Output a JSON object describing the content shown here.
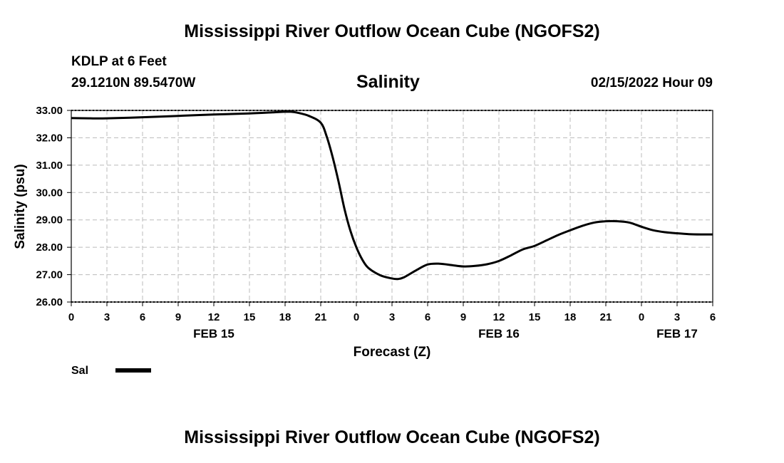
{
  "page_title": "Mississippi River Outflow Ocean Cube (NGOFS2)",
  "footer_title": "Mississippi River Outflow Ocean Cube (NGOFS2)",
  "station": {
    "name_depth": "KDLP at 6 Feet",
    "coordinates": "29.1210N  89.5470W",
    "date_hour": "02/15/2022 Hour 09"
  },
  "colors": {
    "line": "#000000",
    "grid": "#bbbbbb",
    "background": "#ffffff"
  },
  "chart_data": {
    "type": "line",
    "title": "Salinity",
    "xlabel": "Forecast (Z)",
    "ylabel": "Salinity (psu)",
    "xlim": [
      0,
      54
    ],
    "ylim": [
      26,
      33
    ],
    "yticks": [
      26,
      27,
      28,
      29,
      30,
      31,
      32,
      33
    ],
    "ytick_labels": [
      "26.00",
      "27.00",
      "28.00",
      "29.00",
      "30.00",
      "31.00",
      "32.00",
      "33.00"
    ],
    "xticks": [
      0,
      3,
      6,
      9,
      12,
      15,
      18,
      21,
      24,
      27,
      30,
      33,
      36,
      39,
      42,
      45,
      48,
      51,
      54
    ],
    "xtick_labels": [
      "0",
      "3",
      "6",
      "9",
      "12",
      "15",
      "18",
      "21",
      "0",
      "3",
      "6",
      "9",
      "12",
      "15",
      "18",
      "21",
      "0",
      "3",
      "6"
    ],
    "date_labels": [
      {
        "x": 12,
        "label": "FEB 15"
      },
      {
        "x": 36,
        "label": "FEB 16"
      },
      {
        "x": 51,
        "label": "FEB 17"
      }
    ],
    "grid": true,
    "legend": {
      "position": "bottom-left",
      "entries": [
        {
          "name": "Sal",
          "color": "#000000"
        }
      ]
    },
    "series": [
      {
        "name": "Sal",
        "x": [
          0,
          1.5,
          3,
          6,
          9,
          12,
          15,
          17,
          18,
          18.5,
          19,
          20,
          21,
          21.5,
          22,
          22.5,
          23,
          23.5,
          24,
          24.5,
          25,
          26,
          27,
          27.5,
          28,
          29,
          30,
          31,
          32,
          33,
          34,
          35,
          36,
          37,
          38,
          39,
          40,
          41,
          42,
          43,
          44,
          45,
          46,
          47,
          48,
          49,
          50,
          51,
          52,
          53,
          54
        ],
        "values": [
          32.72,
          32.71,
          32.71,
          32.75,
          32.8,
          32.85,
          32.89,
          32.93,
          32.95,
          32.95,
          32.92,
          32.8,
          32.55,
          32.05,
          31.3,
          30.4,
          29.4,
          28.6,
          28.0,
          27.55,
          27.25,
          26.98,
          26.86,
          26.84,
          26.9,
          27.15,
          27.37,
          27.4,
          27.35,
          27.3,
          27.32,
          27.38,
          27.5,
          27.7,
          27.92,
          28.05,
          28.25,
          28.45,
          28.62,
          28.78,
          28.9,
          28.95,
          28.95,
          28.9,
          28.75,
          28.62,
          28.55,
          28.51,
          28.48,
          28.47,
          28.47
        ]
      }
    ]
  }
}
